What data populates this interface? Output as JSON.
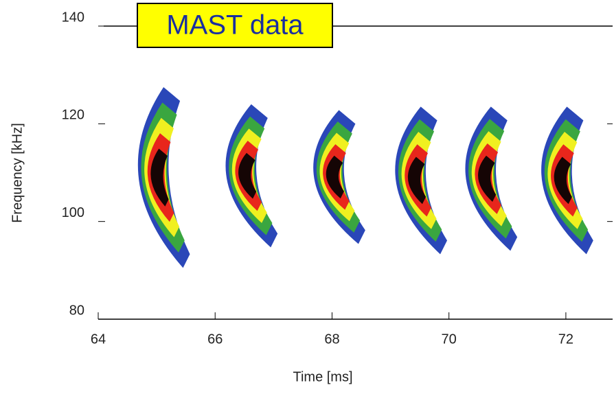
{
  "chart_data": {
    "type": "contour",
    "annotation": "MAST data",
    "xlabel": "Time [ms]",
    "ylabel": "Frequency [kHz]",
    "xlim": [
      64,
      72.8
    ],
    "ylim": [
      80,
      140
    ],
    "xticks": [
      64,
      66,
      68,
      70,
      72
    ],
    "yticks": [
      80,
      100,
      120,
      140
    ],
    "colors": [
      "#2a47b8",
      "#3aa640",
      "#f0f020",
      "#e8261c",
      "#150505"
    ],
    "bursts": [
      {
        "time": 65.0,
        "fmin": 90.5,
        "fmax": 127.5
      },
      {
        "time": 66.5,
        "fmin": 94.7,
        "fmax": 124
      },
      {
        "time": 68.0,
        "fmin": 95.4,
        "fmax": 122.8
      },
      {
        "time": 69.4,
        "fmin": 93.3,
        "fmax": 123.5
      },
      {
        "time": 70.6,
        "fmin": 94,
        "fmax": 123.5
      },
      {
        "time": 71.9,
        "fmin": 93.3,
        "fmax": 123.5
      }
    ]
  }
}
